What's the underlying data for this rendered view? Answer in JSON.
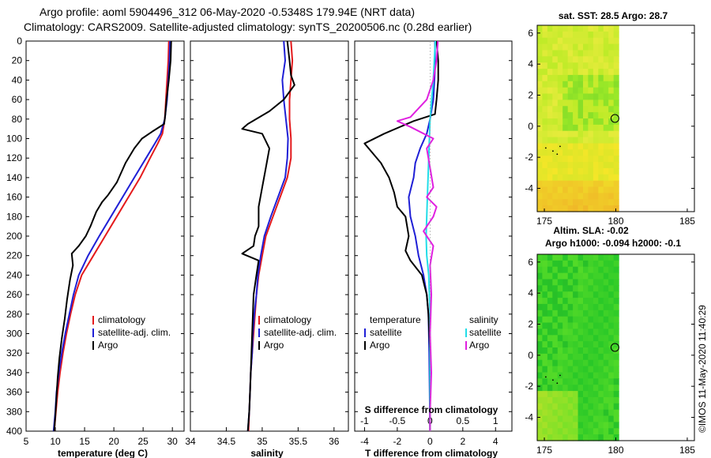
{
  "header": {
    "line1": "Argo profile: aoml 5904496_312 06-May-2020 -0.5348S 179.94E (NRT data)",
    "line2": "Climatology: CARS2009. Satellite-adjusted climatology: synTS_20200506.nc (0.28d earlier)"
  },
  "side_label": "©IMOS 11-May-2020 11:40:29",
  "colors": {
    "climatology": "#e41a1c",
    "satellite": "#1f1fd6",
    "argo": "#000000",
    "sat_s": "#22dde8",
    "argo_s": "#e020e0"
  },
  "chart_data": [
    {
      "id": "temperature",
      "type": "line",
      "xlabel": "temperature (deg C)",
      "ylim": [
        400,
        0
      ],
      "xlim": [
        5,
        32
      ],
      "xticks": [
        "5",
        "10",
        "15",
        "20",
        "25",
        "30"
      ],
      "xtick_values": [
        5,
        10,
        15,
        20,
        25,
        30
      ],
      "yticks": [
        "0",
        "20",
        "40",
        "60",
        "80",
        "100",
        "120",
        "140",
        "160",
        "180",
        "200",
        "220",
        "240",
        "260",
        "280",
        "300",
        "320",
        "340",
        "360",
        "380",
        "400"
      ],
      "legend": [
        "climatology",
        "satellite-adj. clim.",
        "Argo"
      ],
      "series": [
        {
          "name": "climatology",
          "key": "climatology",
          "points": [
            [
              29.4,
              0
            ],
            [
              29.3,
              20
            ],
            [
              29.1,
              40
            ],
            [
              28.9,
              60
            ],
            [
              28.7,
              80
            ],
            [
              28.3,
              95
            ],
            [
              27.5,
              105
            ],
            [
              26.2,
              120
            ],
            [
              24.5,
              140
            ],
            [
              22.5,
              160
            ],
            [
              20.5,
              180
            ],
            [
              18.5,
              200
            ],
            [
              16.5,
              220
            ],
            [
              14.5,
              240
            ],
            [
              13.4,
              260
            ],
            [
              12.6,
              280
            ],
            [
              11.9,
              300
            ],
            [
              11.3,
              320
            ],
            [
              10.8,
              340
            ],
            [
              10.4,
              360
            ],
            [
              10.1,
              380
            ],
            [
              9.8,
              400
            ]
          ]
        },
        {
          "name": "satellite-adj. clim.",
          "key": "satellite",
          "points": [
            [
              29.6,
              0
            ],
            [
              29.5,
              20
            ],
            [
              29.3,
              40
            ],
            [
              29.1,
              60
            ],
            [
              28.7,
              80
            ],
            [
              28.0,
              95
            ],
            [
              27.0,
              105
            ],
            [
              25.5,
              120
            ],
            [
              23.5,
              140
            ],
            [
              21.5,
              160
            ],
            [
              19.5,
              180
            ],
            [
              17.5,
              200
            ],
            [
              15.6,
              220
            ],
            [
              14.0,
              240
            ],
            [
              13.1,
              260
            ],
            [
              12.4,
              280
            ],
            [
              11.7,
              300
            ],
            [
              11.1,
              320
            ],
            [
              10.6,
              340
            ],
            [
              10.2,
              360
            ],
            [
              10.0,
              380
            ],
            [
              9.7,
              400
            ]
          ]
        },
        {
          "name": "Argo",
          "key": "argo",
          "points": [
            [
              29.8,
              0
            ],
            [
              29.7,
              20
            ],
            [
              29.4,
              40
            ],
            [
              29.0,
              60
            ],
            [
              28.8,
              75
            ],
            [
              28.6,
              85
            ],
            [
              26.5,
              93
            ],
            [
              24.8,
              100
            ],
            [
              23.5,
              110
            ],
            [
              22.0,
              125
            ],
            [
              20.5,
              145
            ],
            [
              19.0,
              158
            ],
            [
              18.0,
              165
            ],
            [
              17.0,
              175
            ],
            [
              16.0,
              190
            ],
            [
              15.2,
              200
            ],
            [
              14.0,
              210
            ],
            [
              12.8,
              218
            ],
            [
              13.0,
              230
            ],
            [
              12.5,
              245
            ],
            [
              12.0,
              265
            ],
            [
              11.6,
              285
            ],
            [
              11.1,
              305
            ],
            [
              10.7,
              325
            ],
            [
              10.4,
              345
            ],
            [
              10.2,
              365
            ],
            [
              10.0,
              385
            ],
            [
              9.8,
              400
            ]
          ]
        }
      ]
    },
    {
      "id": "salinity",
      "type": "line",
      "xlabel": "salinity",
      "ylim": [
        400,
        0
      ],
      "xlim": [
        34.0,
        36.2
      ],
      "xticks": [
        "34",
        "34.5",
        "35",
        "35.5",
        "36"
      ],
      "xtick_values": [
        34,
        34.5,
        35,
        35.5,
        36
      ],
      "legend": [
        "climatology",
        "satellite-adj. clim.",
        "Argo"
      ],
      "series": [
        {
          "name": "climatology",
          "key": "climatology",
          "points": [
            [
              35.4,
              0
            ],
            [
              35.42,
              20
            ],
            [
              35.4,
              40
            ],
            [
              35.38,
              60
            ],
            [
              35.38,
              80
            ],
            [
              35.4,
              100
            ],
            [
              35.4,
              120
            ],
            [
              35.35,
              140
            ],
            [
              35.25,
              160
            ],
            [
              35.15,
              180
            ],
            [
              35.05,
              200
            ],
            [
              35.0,
              220
            ],
            [
              34.95,
              240
            ],
            [
              34.92,
              260
            ],
            [
              34.9,
              280
            ],
            [
              34.88,
              300
            ],
            [
              34.86,
              320
            ],
            [
              34.84,
              340
            ],
            [
              34.83,
              360
            ],
            [
              34.82,
              380
            ],
            [
              34.81,
              400
            ]
          ]
        },
        {
          "name": "satellite-adj. clim.",
          "key": "satellite",
          "points": [
            [
              35.3,
              0
            ],
            [
              35.32,
              20
            ],
            [
              35.28,
              40
            ],
            [
              35.3,
              60
            ],
            [
              35.33,
              80
            ],
            [
              35.36,
              100
            ],
            [
              35.35,
              120
            ],
            [
              35.32,
              140
            ],
            [
              35.22,
              160
            ],
            [
              35.12,
              180
            ],
            [
              35.03,
              200
            ],
            [
              34.98,
              220
            ],
            [
              34.94,
              240
            ],
            [
              34.92,
              260
            ],
            [
              34.89,
              280
            ],
            [
              34.87,
              300
            ],
            [
              34.86,
              320
            ],
            [
              34.84,
              340
            ],
            [
              34.83,
              360
            ],
            [
              34.82,
              380
            ],
            [
              34.8,
              400
            ]
          ]
        },
        {
          "name": "Argo",
          "key": "argo",
          "points": [
            [
              35.35,
              0
            ],
            [
              35.38,
              20
            ],
            [
              35.4,
              35
            ],
            [
              35.45,
              45
            ],
            [
              35.3,
              60
            ],
            [
              35.1,
              72
            ],
            [
              34.8,
              85
            ],
            [
              34.72,
              90
            ],
            [
              35.0,
              95
            ],
            [
              35.1,
              110
            ],
            [
              35.05,
              130
            ],
            [
              35.0,
              150
            ],
            [
              34.95,
              170
            ],
            [
              34.95,
              190
            ],
            [
              34.9,
              200
            ],
            [
              34.88,
              210
            ],
            [
              34.72,
              218
            ],
            [
              34.95,
              225
            ],
            [
              34.92,
              240
            ],
            [
              34.88,
              260
            ],
            [
              34.87,
              280
            ],
            [
              34.86,
              300
            ],
            [
              34.85,
              320
            ],
            [
              34.84,
              340
            ],
            [
              34.83,
              360
            ],
            [
              34.82,
              380
            ],
            [
              34.8,
              400
            ]
          ]
        }
      ]
    },
    {
      "id": "difference",
      "type": "line",
      "xlabel": "T difference from climatology",
      "xlabel_top": "S difference from climatology",
      "ylim": [
        400,
        0
      ],
      "xlim": [
        -4.6,
        5.0
      ],
      "xticks": [
        "-4",
        "-2",
        "0",
        "2",
        "4"
      ],
      "xtick_values": [
        -4,
        -2,
        0,
        2,
        4
      ],
      "xticks_top": [
        "-1",
        "-0.5",
        "0",
        "0.5",
        "1"
      ],
      "legend_left_title": "temperature",
      "legend_right_title": "salinity",
      "legend_labels": [
        "satellite",
        "Argo"
      ],
      "series": [
        {
          "name": "T satellite",
          "key": "satellite",
          "points": [
            [
              0.3,
              0
            ],
            [
              0.3,
              30
            ],
            [
              0.2,
              60
            ],
            [
              0.0,
              80
            ],
            [
              -0.2,
              95
            ],
            [
              -0.6,
              110
            ],
            [
              -0.9,
              125
            ],
            [
              -1.0,
              140
            ],
            [
              -1.3,
              160
            ],
            [
              -1.2,
              180
            ],
            [
              -0.9,
              200
            ],
            [
              -0.7,
              220
            ],
            [
              -0.4,
              240
            ],
            [
              -0.2,
              260
            ],
            [
              -0.1,
              280
            ],
            [
              -0.05,
              320
            ],
            [
              0.0,
              400
            ]
          ]
        },
        {
          "name": "T Argo",
          "key": "argo",
          "points": [
            [
              0.4,
              0
            ],
            [
              0.5,
              20
            ],
            [
              0.5,
              40
            ],
            [
              0.4,
              60
            ],
            [
              0.3,
              75
            ],
            [
              -1.0,
              82
            ],
            [
              -2.8,
              95
            ],
            [
              -4.0,
              105
            ],
            [
              -3.5,
              115
            ],
            [
              -3.0,
              125
            ],
            [
              -2.5,
              140
            ],
            [
              -2.2,
              155
            ],
            [
              -2.0,
              170
            ],
            [
              -1.5,
              180
            ],
            [
              -1.3,
              200
            ],
            [
              -1.5,
              215
            ],
            [
              -1.2,
              225
            ],
            [
              -0.5,
              240
            ],
            [
              -0.2,
              260
            ],
            [
              -0.1,
              280
            ],
            [
              0.0,
              320
            ],
            [
              0.0,
              400
            ]
          ]
        },
        {
          "name": "S satellite",
          "key": "sat_s",
          "points": [
            [
              0.08,
              0
            ],
            [
              0.05,
              40
            ],
            [
              0.0,
              80
            ],
            [
              -0.02,
              120
            ],
            [
              -0.04,
              160
            ],
            [
              -0.06,
              200
            ],
            [
              -0.05,
              220
            ],
            [
              -0.02,
              240
            ],
            [
              0.0,
              280
            ],
            [
              0.0,
              400
            ]
          ]
        },
        {
          "name": "S Argo",
          "key": "argo_s",
          "points": [
            [
              0.12,
              0
            ],
            [
              0.1,
              20
            ],
            [
              0.05,
              40
            ],
            [
              -0.05,
              60
            ],
            [
              -0.3,
              78
            ],
            [
              -0.5,
              82
            ],
            [
              -0.3,
              88
            ],
            [
              0.05,
              100
            ],
            [
              -0.05,
              110
            ],
            [
              0.0,
              130
            ],
            [
              0.05,
              150
            ],
            [
              -0.05,
              160
            ],
            [
              0.1,
              170
            ],
            [
              0.05,
              180
            ],
            [
              -0.1,
              195
            ],
            [
              0.05,
              210
            ],
            [
              0.0,
              230
            ],
            [
              0.02,
              260
            ],
            [
              0.0,
              300
            ],
            [
              0.02,
              340
            ],
            [
              0.0,
              380
            ],
            [
              0.0,
              400
            ]
          ]
        }
      ]
    },
    {
      "id": "sst_map",
      "type": "heatmap",
      "title": "sat. SST: 28.5 Argo: 28.7",
      "xticks": [
        "175",
        "180",
        "185"
      ],
      "xtick_values": [
        175,
        180,
        185
      ],
      "yticks": [
        "-4",
        "-2",
        "0",
        "2",
        "4",
        "6"
      ],
      "ytick_values": [
        -4,
        -2,
        0,
        2,
        4,
        6
      ],
      "xlim": [
        174.5,
        185.5
      ],
      "ylim": [
        -5.5,
        6.5
      ],
      "data_xlim": [
        174.5,
        180.2
      ],
      "float_position": [
        179.94,
        -0.53
      ]
    },
    {
      "id": "sla_map",
      "type": "heatmap",
      "title": "Altim. SLA: -0.02",
      "subtitle": "Argo h1000: -0.094 h2000: -0.1",
      "xticks": [
        "175",
        "180",
        "185"
      ],
      "xtick_values": [
        175,
        180,
        185
      ],
      "yticks": [
        "-4",
        "-2",
        "0",
        "2",
        "4",
        "6"
      ],
      "ytick_values": [
        -4,
        -2,
        0,
        2,
        4,
        6
      ],
      "xlim": [
        174.5,
        185.5
      ],
      "ylim": [
        -5.5,
        6.5
      ],
      "data_xlim": [
        174.5,
        180.2
      ],
      "float_position": [
        179.94,
        -0.53
      ]
    }
  ]
}
